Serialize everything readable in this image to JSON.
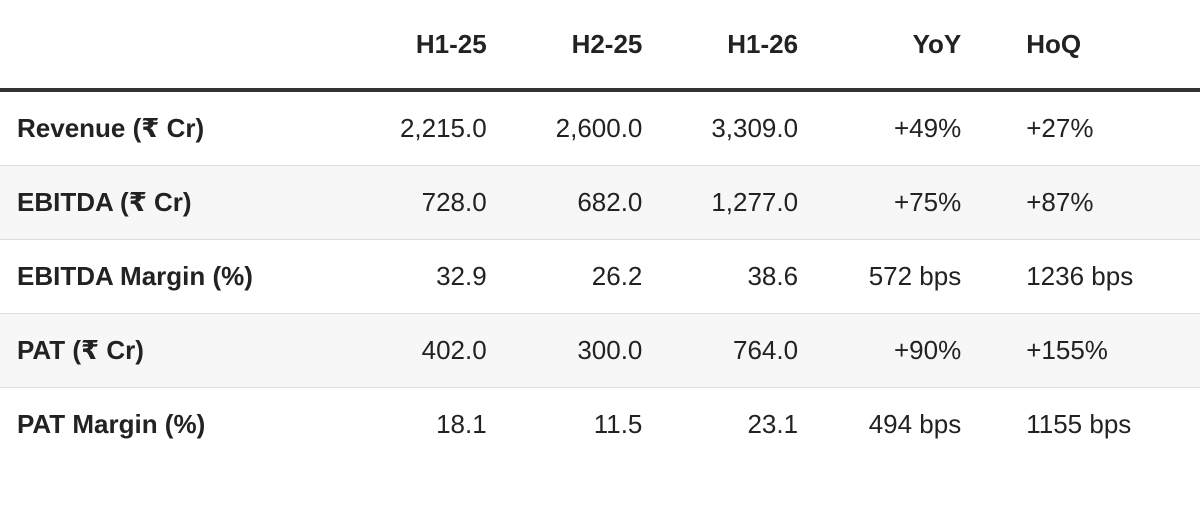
{
  "table": {
    "header": [
      "",
      "H1-25",
      "H2-25",
      "H1-26",
      "YoY",
      "HoQ"
    ],
    "rows": [
      [
        "Revenue (₹ Cr)",
        "2,215.0",
        "2,600.0",
        "3,309.0",
        "+49%",
        "+27%"
      ],
      [
        "EBITDA (₹ Cr)",
        "728.0",
        "682.0",
        "1,277.0",
        "+75%",
        "+87%"
      ],
      [
        "EBITDA Margin (%)",
        "32.9",
        "26.2",
        "38.6",
        "572 bps",
        "1236 bps"
      ],
      [
        "PAT (₹ Cr)",
        "402.0",
        "300.0",
        "764.0",
        "+90%",
        "+155%"
      ],
      [
        "PAT Margin (%)",
        "18.1",
        "11.5",
        "23.1",
        "494 bps",
        "1155 bps"
      ]
    ]
  }
}
